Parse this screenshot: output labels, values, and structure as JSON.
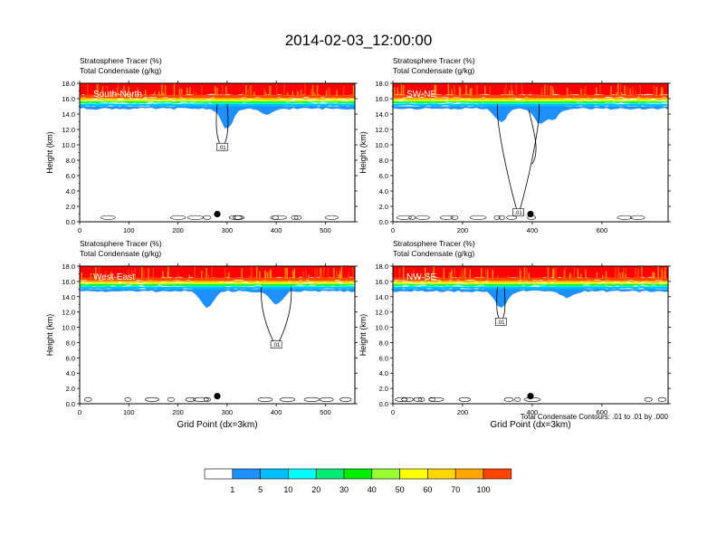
{
  "title": "2014-02-03_12:00:00",
  "chart_data": {
    "type": "heatmap",
    "colors": {
      "background": "#ffffff",
      "axis": "#000000",
      "contour": "#000000",
      "scale": [
        "#ffffff",
        "#1e90ff",
        "#00bfff",
        "#00ffff",
        "#00ee76",
        "#00ee00",
        "#9aff32",
        "#ffff00",
        "#ffd700",
        "#ffa500",
        "#ff4500",
        "#ff0000"
      ]
    },
    "header_line1": "Stratosphere Tracer   (%)",
    "header_line2": "Total Condensate   (g/kg)",
    "ylabel": "Height (km)",
    "xlabel": "Grid Point (dx=3km)",
    "ylim": [
      0,
      18
    ],
    "y_ticks": [
      "0.0",
      "2.0",
      "4.0",
      "6.0",
      "8.0",
      "10.0",
      "12.0",
      "14.0",
      "16.0",
      "18.0"
    ],
    "y_tick_values": [
      0,
      2,
      4,
      6,
      8,
      10,
      12,
      14,
      16,
      18
    ],
    "contour_note": "Total Condensate Contours: .01 to .01 by .000",
    "contour_label": ".01",
    "panels": [
      {
        "name": "South-North",
        "xlim": [
          0,
          560
        ],
        "x_ticks": [
          "0",
          "100",
          "200",
          "300",
          "400",
          "500"
        ],
        "x_tick_values": [
          0,
          100,
          200,
          300,
          400,
          500
        ],
        "marker_x": 280,
        "tropopause_km": 15.5,
        "intrusions": [
          [
            300,
            12.0
          ],
          [
            380,
            14.0
          ]
        ],
        "cloud_top_x": [
          280,
          300
        ]
      },
      {
        "name": "SW-NE",
        "xlim": [
          0,
          790
        ],
        "x_ticks": [
          "0",
          "200",
          "400",
          "600"
        ],
        "x_tick_values": [
          0,
          200,
          400,
          600
        ],
        "marker_x": 395,
        "tropopause_km": 15.5,
        "intrusions": [
          [
            310,
            13.0
          ],
          [
            420,
            13.0
          ],
          [
            460,
            13.5
          ]
        ],
        "cloud_top_x": [
          300,
          420
        ]
      },
      {
        "name": "West-East",
        "xlim": [
          0,
          560
        ],
        "x_ticks": [
          "0",
          "100",
          "200",
          "300",
          "400",
          "500"
        ],
        "x_tick_values": [
          0,
          100,
          200,
          300,
          400,
          500
        ],
        "marker_x": 280,
        "tropopause_km": 15.5,
        "intrusions": [
          [
            260,
            12.5
          ],
          [
            400,
            13.0
          ]
        ],
        "cloud_top_x": [
          370,
          430
        ]
      },
      {
        "name": "NW-SE",
        "xlim": [
          0,
          790
        ],
        "x_ticks": [
          "0",
          "200",
          "400",
          "600"
        ],
        "x_tick_values": [
          0,
          200,
          400,
          600
        ],
        "marker_x": 395,
        "tropopause_km": 15.5,
        "intrusions": [
          [
            310,
            12.5
          ],
          [
            500,
            14.0
          ]
        ],
        "cloud_top_x": [
          300,
          320
        ]
      }
    ],
    "legend": {
      "labels": [
        "1",
        "5",
        "10",
        "20",
        "30",
        "40",
        "50",
        "60",
        "70",
        "100"
      ]
    }
  }
}
